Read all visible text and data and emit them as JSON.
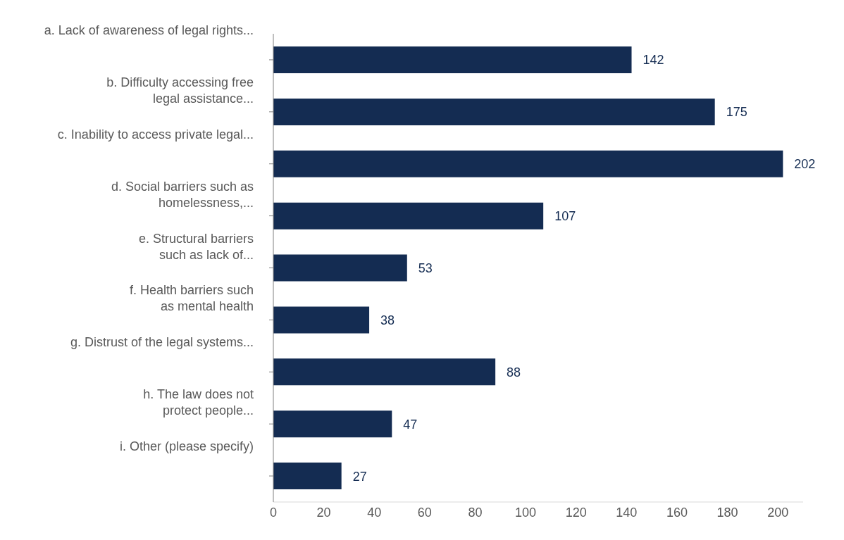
{
  "chart_data": {
    "type": "bar",
    "orientation": "horizontal",
    "categories": [
      "a. Lack of awareness of legal rights...",
      "b. Difficulty accessing free\nlegal assistance...",
      "c. Inability to access private legal...",
      "d. Social barriers such as\nhomelessness,...",
      "e. Structural barriers\nsuch as lack of...",
      "f. Health barriers such\nas mental health",
      "g. Distrust of the legal systems...",
      "h. The law does not\nprotect people...",
      "i. Other (please specify)"
    ],
    "values": [
      142,
      175,
      202,
      107,
      53,
      38,
      88,
      47,
      27
    ],
    "color": "#142c52",
    "xlim": [
      0,
      210
    ],
    "xticks": [
      0,
      20,
      40,
      60,
      80,
      100,
      120,
      140,
      160,
      180,
      200
    ],
    "data_labels": true,
    "grid": false,
    "legend": false
  }
}
